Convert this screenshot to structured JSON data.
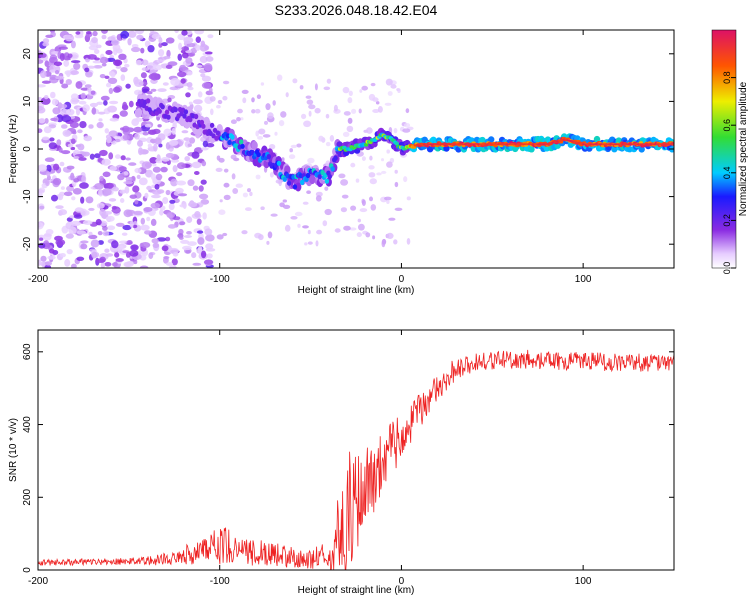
{
  "title": "S233.2026.048.18.42.E04",
  "colors": {
    "snr_line": "#ee2222",
    "axis": "#000000",
    "background": "#ffffff",
    "spectrum_peak": "#dd1166"
  },
  "chart_data": [
    {
      "type": "heatmap",
      "name": "spectrogram",
      "xlabel": "Height of straight line (km)",
      "ylabel": "Frequency (Hz)",
      "xlim": [
        -200,
        150
      ],
      "ylim": [
        -25,
        25
      ],
      "xticks": [
        -200,
        -100,
        0,
        100
      ],
      "xtick_labels": [
        "-200",
        "-100",
        "0",
        "100"
      ],
      "yticks": [
        -20,
        -10,
        0,
        10,
        20
      ],
      "ytick_labels": [
        "-20",
        "-10",
        "0",
        "10",
        "20"
      ],
      "ridge": {
        "x": [
          -140,
          -120,
          -110,
          -100,
          -90,
          -80,
          -70,
          -60,
          -50,
          -40,
          -35,
          -30,
          -20,
          -15,
          -10,
          -5,
          0,
          10,
          20,
          40,
          60,
          80,
          90,
          100,
          120,
          150
        ],
        "freq": [
          9,
          7,
          5,
          3,
          1,
          -1,
          -3,
          -7,
          -5,
          -6,
          0,
          0,
          1,
          2,
          3,
          2,
          0,
          1,
          1,
          1,
          1,
          1,
          2,
          1,
          1,
          1
        ]
      },
      "colorbar": {
        "label": "Normalized spectral amplitude",
        "range": [
          0.0,
          1.0
        ],
        "ticks": [
          0.0,
          0.2,
          0.4,
          0.6,
          0.8
        ],
        "tick_labels": [
          "0.0",
          "0.2",
          "0.4",
          "0.6",
          "0.8"
        ]
      }
    },
    {
      "type": "line",
      "name": "snr",
      "xlabel": "Height of straight line (km)",
      "ylabel": "SNR (10 * v/v)",
      "xlim": [
        -200,
        150
      ],
      "ylim": [
        0,
        660
      ],
      "xticks": [
        -200,
        -100,
        0,
        100
      ],
      "xtick_labels": [
        "-200",
        "-100",
        "0",
        "100"
      ],
      "yticks": [
        0,
        200,
        400,
        600
      ],
      "ytick_labels": [
        "0",
        "200",
        "400",
        "600"
      ],
      "envelope": {
        "x": [
          -200,
          -140,
          -130,
          -120,
          -110,
          -100,
          -90,
          -80,
          -70,
          -60,
          -50,
          -40,
          -35,
          -30,
          -25,
          -20,
          -15,
          -10,
          -5,
          0,
          5,
          10,
          20,
          30,
          40,
          60,
          80,
          100,
          120,
          150
        ],
        "mean": [
          20,
          25,
          30,
          40,
          50,
          70,
          60,
          45,
          40,
          35,
          30,
          40,
          60,
          150,
          200,
          220,
          260,
          300,
          330,
          360,
          400,
          440,
          500,
          550,
          570,
          580,
          575,
          575,
          570,
          570
        ],
        "amplitude": [
          8,
          10,
          20,
          25,
          40,
          60,
          40,
          35,
          35,
          30,
          30,
          40,
          120,
          170,
          150,
          120,
          100,
          90,
          80,
          70,
          60,
          50,
          40,
          30,
          25,
          25,
          25,
          25,
          25,
          25
        ]
      }
    }
  ]
}
